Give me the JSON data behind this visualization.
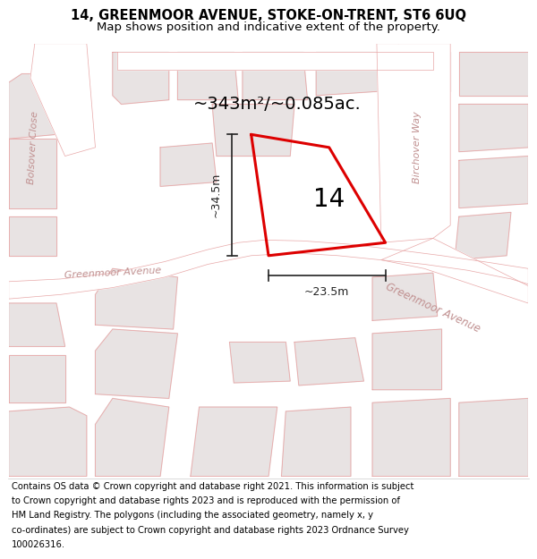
{
  "title_line1": "14, GREENMOOR AVENUE, STOKE-ON-TRENT, ST6 6UQ",
  "title_line2": "Map shows position and indicative extent of the property.",
  "footer_lines": [
    "Contains OS data © Crown copyright and database right 2021. This information is subject",
    "to Crown copyright and database rights 2023 and is reproduced with the permission of",
    "HM Land Registry. The polygons (including the associated geometry, namely x, y",
    "co-ordinates) are subject to Crown copyright and database rights 2023 Ordnance Survey",
    "100026316."
  ],
  "map_bg": "#f7f4f4",
  "building_fill": "#e8e3e3",
  "building_edge": "#e8a8a8",
  "road_fill": "#ffffff",
  "road_edge": "#e8a8a8",
  "plot_color": "#dd0000",
  "label_area": "~343m²/~0.085ac.",
  "label_number": "14",
  "dim_height": "~34.5m",
  "dim_width": "~23.5m",
  "title_fontsize": 10.5,
  "subtitle_fontsize": 9.5,
  "footer_fontsize": 7.2,
  "area_fontsize": 14,
  "num_fontsize": 20,
  "street_fontsize": 8,
  "street_color": "#c09090",
  "dim_fontsize": 9
}
